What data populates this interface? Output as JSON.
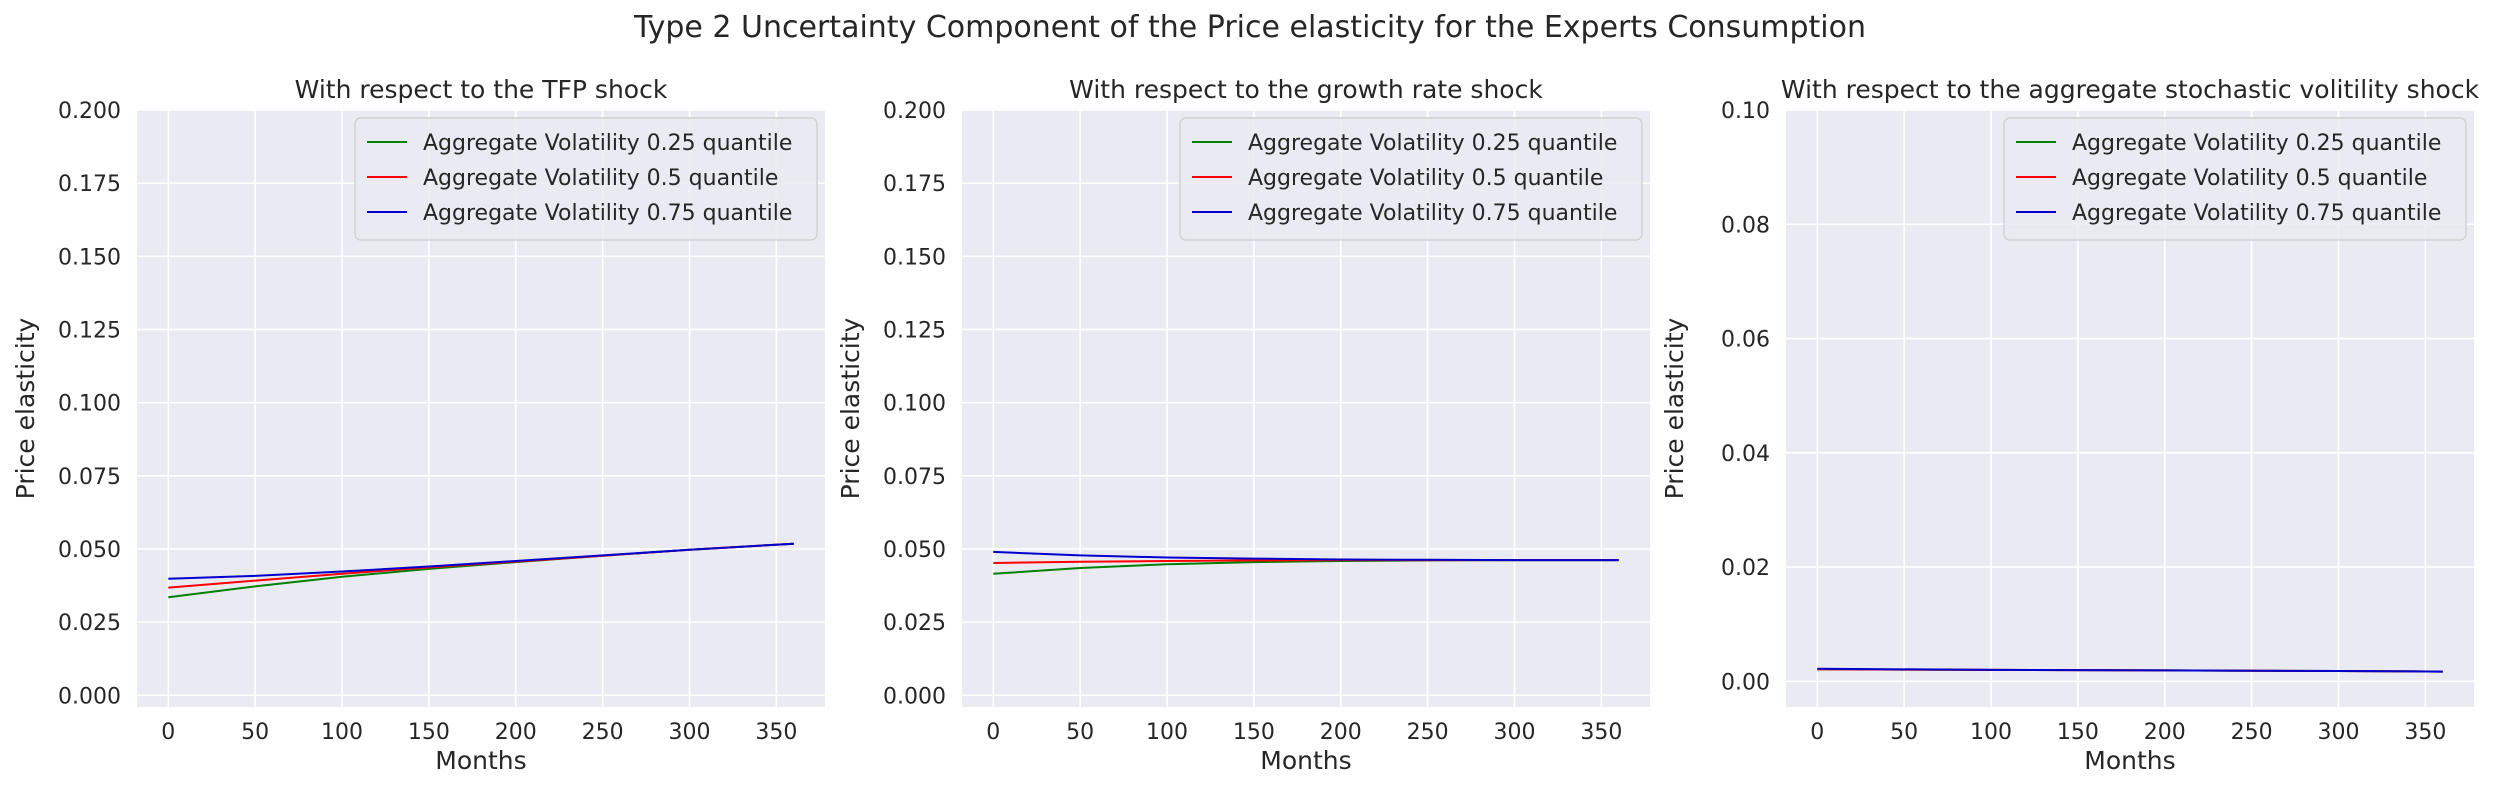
{
  "figure": {
    "suptitle": "Type 2 Uncertainty Component of the Price elasticity for the Experts Consumption"
  },
  "chart_data": [
    {
      "type": "line",
      "title": "With respect to the TFP shock",
      "xlabel": "Months",
      "ylabel": "Price elasticity",
      "xlim": [
        -18,
        378
      ],
      "ylim": [
        -0.004,
        0.2
      ],
      "xticks": [
        0,
        50,
        100,
        150,
        200,
        250,
        300,
        350
      ],
      "yticks": [
        "0.000",
        "0.025",
        "0.050",
        "0.075",
        "0.100",
        "0.125",
        "0.150",
        "0.175",
        "0.200"
      ],
      "grid": true,
      "legend_position": "top-right",
      "series": [
        {
          "name": "Aggregate Volatility 0.25 quantile",
          "color": "#008000",
          "x": [
            0,
            50,
            100,
            150,
            200,
            250,
            300,
            360
          ],
          "y": [
            0.0335,
            0.0372,
            0.0405,
            0.0432,
            0.0455,
            0.0477,
            0.0497,
            0.0518
          ]
        },
        {
          "name": "Aggregate Volatility 0.5 quantile",
          "color": "#ff0000",
          "x": [
            0,
            50,
            100,
            150,
            200,
            250,
            300,
            360
          ],
          "y": [
            0.0368,
            0.0392,
            0.0415,
            0.0437,
            0.0457,
            0.0477,
            0.0497,
            0.0518
          ]
        },
        {
          "name": "Aggregate Volatility 0.75 quantile",
          "color": "#0000cd",
          "x": [
            0,
            50,
            100,
            150,
            200,
            250,
            300,
            360
          ],
          "y": [
            0.0398,
            0.0408,
            0.0423,
            0.044,
            0.0459,
            0.0478,
            0.0497,
            0.0518
          ]
        }
      ]
    },
    {
      "type": "line",
      "title": "With respect to the growth rate shock",
      "xlabel": "Months",
      "ylabel": "Price elasticity",
      "xlim": [
        -18,
        378
      ],
      "ylim": [
        -0.004,
        0.2
      ],
      "xticks": [
        0,
        50,
        100,
        150,
        200,
        250,
        300,
        350
      ],
      "yticks": [
        "0.000",
        "0.025",
        "0.050",
        "0.075",
        "0.100",
        "0.125",
        "0.150",
        "0.175",
        "0.200"
      ],
      "grid": true,
      "legend_position": "top-right",
      "series": [
        {
          "name": "Aggregate Volatility 0.25 quantile",
          "color": "#008000",
          "x": [
            0,
            50,
            100,
            150,
            200,
            250,
            300,
            360
          ],
          "y": [
            0.0415,
            0.0435,
            0.0448,
            0.0455,
            0.0459,
            0.0461,
            0.0462,
            0.0462
          ]
        },
        {
          "name": "Aggregate Volatility 0.5 quantile",
          "color": "#ff0000",
          "x": [
            0,
            50,
            100,
            150,
            200,
            250,
            300,
            360
          ],
          "y": [
            0.0452,
            0.0456,
            0.0459,
            0.0461,
            0.0462,
            0.0462,
            0.0462,
            0.0462
          ]
        },
        {
          "name": "Aggregate Volatility 0.75 quantile",
          "color": "#0000cd",
          "x": [
            0,
            50,
            100,
            150,
            200,
            250,
            300,
            360
          ],
          "y": [
            0.049,
            0.0478,
            0.0471,
            0.0467,
            0.0464,
            0.0463,
            0.0462,
            0.0462
          ]
        }
      ]
    },
    {
      "type": "line",
      "title": "With respect to the aggregate stochastic volitility shock",
      "xlabel": "Months",
      "ylabel": "Price elasticity",
      "xlim": [
        -18,
        378
      ],
      "ylim": [
        -0.0045,
        0.1
      ],
      "xticks": [
        0,
        50,
        100,
        150,
        200,
        250,
        300,
        350
      ],
      "yticks": [
        "0.00",
        "0.02",
        "0.04",
        "0.06",
        "0.08",
        "0.10"
      ],
      "grid": true,
      "legend_position": "top-right",
      "series": [
        {
          "name": "Aggregate Volatility 0.25 quantile",
          "color": "#008000",
          "x": [
            0,
            100,
            200,
            300,
            360
          ],
          "y": [
            0.0021,
            0.002,
            0.0019,
            0.0018,
            0.0017
          ]
        },
        {
          "name": "Aggregate Volatility 0.5 quantile",
          "color": "#ff0000",
          "x": [
            0,
            100,
            200,
            300,
            360
          ],
          "y": [
            0.0021,
            0.002,
            0.0019,
            0.0018,
            0.0017
          ]
        },
        {
          "name": "Aggregate Volatility 0.75 quantile",
          "color": "#0000cd",
          "x": [
            0,
            100,
            200,
            300,
            360
          ],
          "y": [
            0.0022,
            0.002,
            0.0019,
            0.0018,
            0.0017
          ]
        }
      ]
    }
  ]
}
